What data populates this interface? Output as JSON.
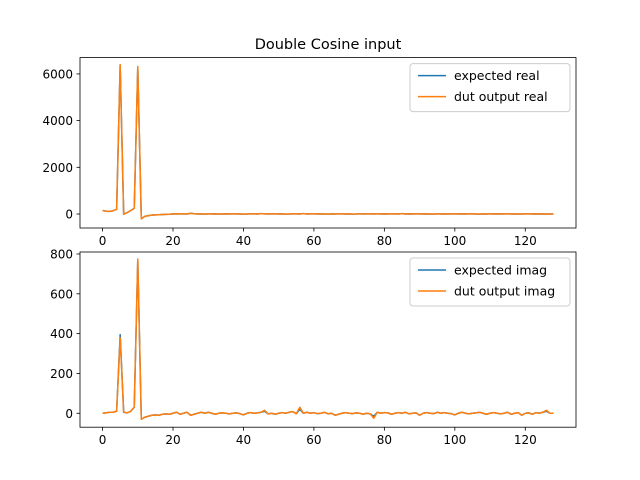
{
  "figure": {
    "title": "Double Cosine input"
  },
  "colors": {
    "expected": "#1f77b4",
    "dut": "#ff7f0e"
  },
  "chart_data": [
    {
      "type": "line",
      "title": "Double Cosine input",
      "xlabel": "",
      "ylabel": "",
      "xlim": [
        -6.4,
        134.4
      ],
      "ylim": [
        -600,
        6700
      ],
      "xticks": [
        0,
        20,
        40,
        60,
        80,
        100,
        120
      ],
      "yticks": [
        0,
        2000,
        4000,
        6000
      ],
      "legend": "top-right",
      "grid": false,
      "x": [
        0,
        1,
        2,
        3,
        4,
        5,
        6,
        7,
        8,
        9,
        10,
        11,
        12,
        13,
        14,
        15,
        16,
        17,
        18,
        19,
        20,
        21,
        22,
        23,
        24,
        25,
        26,
        27,
        28,
        29,
        30,
        31,
        32,
        33,
        34,
        35,
        36,
        37,
        38,
        39,
        40,
        41,
        42,
        43,
        44,
        45,
        46,
        47,
        48,
        49,
        50,
        51,
        52,
        53,
        54,
        55,
        56,
        57,
        58,
        59,
        60,
        61,
        62,
        63,
        64,
        65,
        66,
        67,
        68,
        69,
        70,
        71,
        72,
        73,
        74,
        75,
        76,
        77,
        78,
        79,
        80,
        81,
        82,
        83,
        84,
        85,
        86,
        87,
        88,
        89,
        90,
        91,
        92,
        93,
        94,
        95,
        96,
        97,
        98,
        99,
        100,
        101,
        102,
        103,
        104,
        105,
        106,
        107,
        108,
        109,
        110,
        111,
        112,
        113,
        114,
        115,
        116,
        117,
        118,
        119,
        120,
        121,
        122,
        123,
        124,
        125,
        126,
        127,
        128
      ],
      "series": [
        {
          "name": "expected real",
          "color": "#1f77b4",
          "values": [
            150,
            120,
            110,
            140,
            200,
            6380,
            -10,
            60,
            150,
            240,
            6300,
            -200,
            -100,
            -70,
            -50,
            -40,
            -30,
            -20,
            -15,
            -10,
            5,
            0,
            10,
            5,
            0,
            30,
            10,
            0,
            5,
            -5,
            10,
            0,
            5,
            0,
            0,
            5,
            0,
            10,
            5,
            0,
            -5,
            0,
            10,
            5,
            0,
            15,
            5,
            0,
            5,
            10,
            0,
            5,
            -5,
            0,
            10,
            5,
            0,
            15,
            0,
            5,
            10,
            0,
            5,
            0,
            -5,
            5,
            0,
            10,
            5,
            0,
            5,
            -5,
            0,
            10,
            0,
            5,
            5,
            0,
            10,
            0,
            5,
            0,
            10,
            5,
            0,
            15,
            0,
            5,
            0,
            10,
            5,
            0,
            5,
            0,
            -5,
            10,
            0,
            5,
            0,
            5,
            10,
            0,
            5,
            0,
            10,
            5,
            0,
            -5,
            5,
            0,
            10,
            0,
            5,
            0,
            5,
            10,
            0,
            5,
            0,
            0,
            5,
            10,
            0,
            5,
            0,
            5,
            0,
            0,
            5
          ]
        },
        {
          "name": "dut output real",
          "color": "#ff7f0e",
          "values": [
            150,
            120,
            110,
            140,
            200,
            6400,
            -10,
            60,
            150,
            240,
            6320,
            -210,
            -100,
            -70,
            -50,
            -40,
            -30,
            -20,
            -15,
            -10,
            5,
            0,
            10,
            5,
            0,
            30,
            10,
            0,
            5,
            -5,
            10,
            0,
            5,
            0,
            0,
            5,
            0,
            10,
            5,
            0,
            -5,
            0,
            10,
            5,
            0,
            15,
            5,
            0,
            5,
            10,
            0,
            5,
            -5,
            0,
            10,
            5,
            0,
            15,
            0,
            5,
            10,
            0,
            5,
            0,
            -5,
            5,
            0,
            10,
            5,
            0,
            5,
            -5,
            0,
            10,
            0,
            5,
            5,
            0,
            10,
            0,
            5,
            0,
            10,
            5,
            0,
            15,
            0,
            5,
            0,
            10,
            5,
            0,
            5,
            0,
            -5,
            10,
            0,
            5,
            0,
            5,
            10,
            0,
            5,
            0,
            10,
            5,
            0,
            -5,
            5,
            0,
            10,
            0,
            5,
            0,
            5,
            10,
            0,
            5,
            0,
            0,
            5,
            10,
            0,
            5,
            0,
            5,
            0,
            0,
            5
          ]
        }
      ]
    },
    {
      "type": "line",
      "title": "",
      "xlabel": "",
      "ylabel": "",
      "xlim": [
        -6.4,
        134.4
      ],
      "ylim": [
        -70,
        810
      ],
      "xticks": [
        0,
        20,
        40,
        60,
        80,
        100,
        120
      ],
      "yticks": [
        0,
        200,
        400,
        600,
        800
      ],
      "legend": "top-right",
      "grid": false,
      "x": [
        0,
        1,
        2,
        3,
        4,
        5,
        6,
        7,
        8,
        9,
        10,
        11,
        12,
        13,
        14,
        15,
        16,
        17,
        18,
        19,
        20,
        21,
        22,
        23,
        24,
        25,
        26,
        27,
        28,
        29,
        30,
        31,
        32,
        33,
        34,
        35,
        36,
        37,
        38,
        39,
        40,
        41,
        42,
        43,
        44,
        45,
        46,
        47,
        48,
        49,
        50,
        51,
        52,
        53,
        54,
        55,
        56,
        57,
        58,
        59,
        60,
        61,
        62,
        63,
        64,
        65,
        66,
        67,
        68,
        69,
        70,
        71,
        72,
        73,
        74,
        75,
        76,
        77,
        78,
        79,
        80,
        81,
        82,
        83,
        84,
        85,
        86,
        87,
        88,
        89,
        90,
        91,
        92,
        93,
        94,
        95,
        96,
        97,
        98,
        99,
        100,
        101,
        102,
        103,
        104,
        105,
        106,
        107,
        108,
        109,
        110,
        111,
        112,
        113,
        114,
        115,
        116,
        117,
        118,
        119,
        120,
        121,
        122,
        123,
        124,
        125,
        126,
        127,
        128
      ],
      "series": [
        {
          "name": "expected imag",
          "color": "#1f77b4",
          "values": [
            0,
            2,
            5,
            5,
            10,
            395,
            5,
            2,
            10,
            30,
            770,
            -30,
            -20,
            -15,
            -10,
            -8,
            -10,
            -5,
            -3,
            -5,
            0,
            5,
            -5,
            0,
            5,
            -10,
            -5,
            0,
            5,
            0,
            5,
            0,
            -5,
            0,
            2,
            0,
            -3,
            0,
            2,
            -2,
            -8,
            0,
            3,
            0,
            2,
            5,
            10,
            -3,
            0,
            -5,
            0,
            3,
            0,
            5,
            8,
            -2,
            20,
            0,
            5,
            0,
            3,
            -2,
            0,
            5,
            -3,
            0,
            -10,
            -5,
            0,
            3,
            0,
            -2,
            2,
            0,
            -5,
            0,
            -3,
            -15,
            5,
            0,
            3,
            2,
            -5,
            0,
            3,
            0,
            5,
            -3,
            0,
            2,
            -10,
            0,
            3,
            0,
            -2,
            5,
            0,
            3,
            0,
            -2,
            -8,
            0,
            5,
            0,
            -3,
            0,
            2,
            5,
            0,
            -5,
            0,
            3,
            0,
            -3,
            0,
            5,
            -5,
            0,
            3,
            -10,
            0,
            2,
            -5,
            3,
            0,
            5,
            10,
            0,
            0
          ]
        },
        {
          "name": "dut output imag",
          "color": "#ff7f0e",
          "values": [
            0,
            2,
            5,
            5,
            10,
            380,
            5,
            2,
            10,
            30,
            775,
            -30,
            -20,
            -15,
            -10,
            -8,
            -10,
            -5,
            -3,
            -5,
            0,
            5,
            -5,
            0,
            5,
            -10,
            -5,
            0,
            5,
            0,
            5,
            0,
            -5,
            0,
            2,
            0,
            -3,
            0,
            2,
            -2,
            -8,
            0,
            3,
            0,
            2,
            5,
            15,
            -3,
            0,
            -5,
            0,
            3,
            0,
            5,
            8,
            -2,
            30,
            0,
            5,
            0,
            3,
            -2,
            0,
            5,
            -3,
            0,
            -10,
            -5,
            0,
            3,
            0,
            -2,
            2,
            0,
            -5,
            0,
            -3,
            -25,
            5,
            0,
            3,
            2,
            -5,
            0,
            3,
            0,
            5,
            -3,
            0,
            2,
            -10,
            0,
            3,
            0,
            -2,
            5,
            0,
            3,
            0,
            -2,
            -8,
            0,
            5,
            0,
            -3,
            0,
            2,
            5,
            0,
            -5,
            0,
            3,
            0,
            -3,
            0,
            5,
            -5,
            0,
            3,
            -10,
            0,
            2,
            -5,
            3,
            0,
            5,
            15,
            0,
            0
          ]
        }
      ]
    }
  ]
}
